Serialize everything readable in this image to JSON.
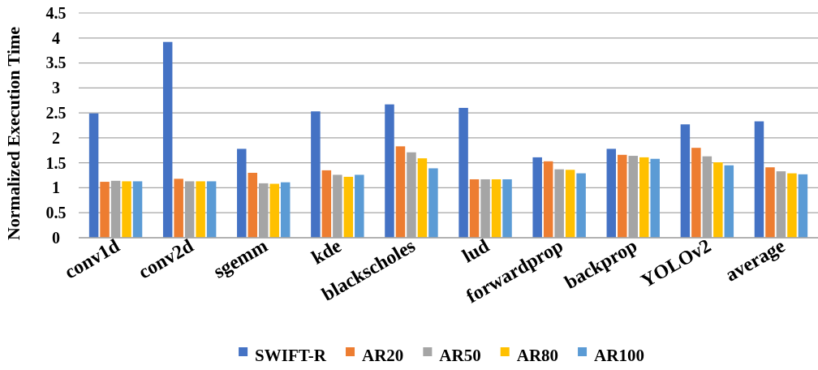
{
  "chart_data": {
    "type": "bar",
    "ylabel": "Normalized Execution Time",
    "categories": [
      "conv1d",
      "conv2d",
      "sgemm",
      "kde",
      "blackscholes",
      "lud",
      "forwardprop",
      "backprop",
      "YOLOv2",
      "average"
    ],
    "series": [
      {
        "name": "SWIFT-R",
        "color": "#4472c4",
        "values": [
          2.49,
          3.92,
          1.78,
          2.53,
          2.67,
          2.6,
          1.61,
          1.78,
          2.27,
          2.33
        ]
      },
      {
        "name": "AR20",
        "color": "#ed7d31",
        "values": [
          1.12,
          1.18,
          1.3,
          1.35,
          1.83,
          1.17,
          1.53,
          1.66,
          1.8,
          1.41
        ]
      },
      {
        "name": "AR50",
        "color": "#a5a5a5",
        "values": [
          1.14,
          1.13,
          1.09,
          1.26,
          1.71,
          1.17,
          1.37,
          1.64,
          1.63,
          1.33
        ]
      },
      {
        "name": "AR80",
        "color": "#ffc000",
        "values": [
          1.13,
          1.13,
          1.08,
          1.22,
          1.59,
          1.17,
          1.36,
          1.61,
          1.51,
          1.29
        ]
      },
      {
        "name": "AR100",
        "color": "#5b9bd5",
        "values": [
          1.13,
          1.13,
          1.11,
          1.26,
          1.39,
          1.17,
          1.29,
          1.58,
          1.45,
          1.27
        ]
      }
    ],
    "ylim": [
      0,
      4.5
    ],
    "yticks": [
      0,
      0.5,
      1,
      1.5,
      2,
      2.5,
      3,
      3.5,
      4,
      4.5
    ],
    "grid": "y",
    "legend": "bottom"
  }
}
